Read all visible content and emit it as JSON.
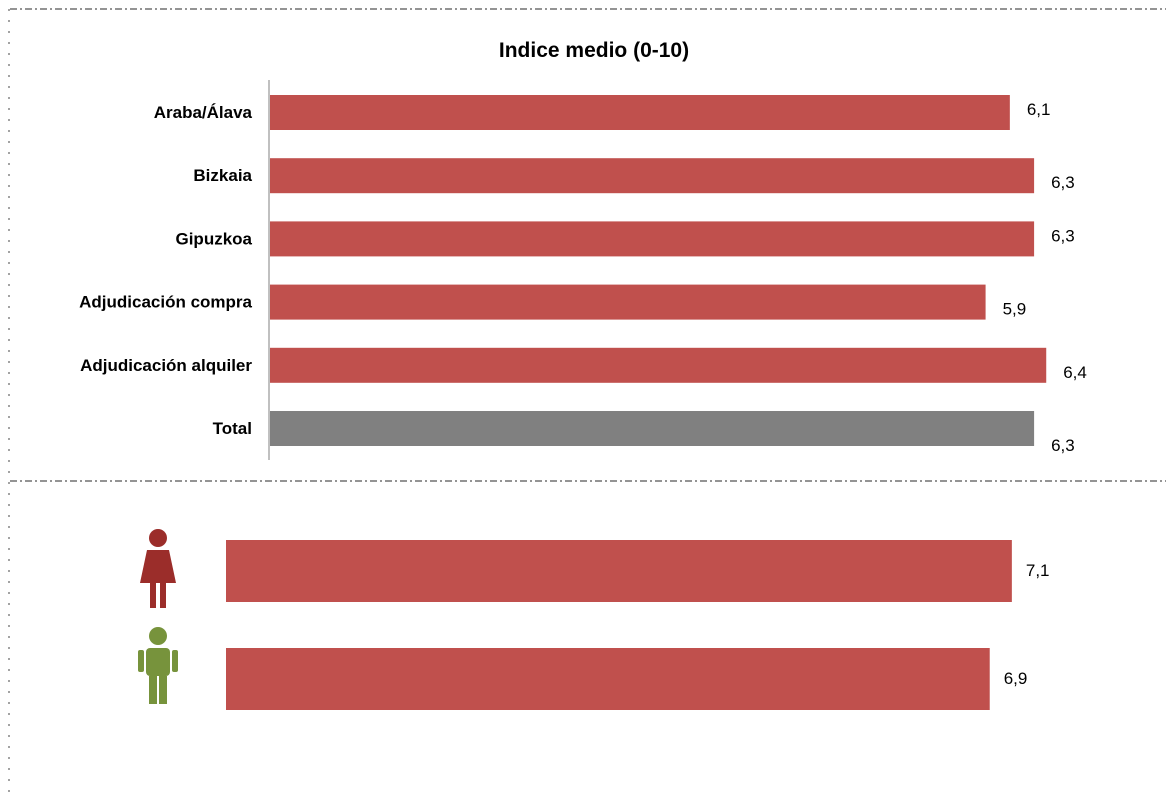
{
  "chart_data": [
    {
      "type": "bar",
      "orientation": "horizontal",
      "title": "Indice medio (0-10)",
      "categories": [
        "Araba/Álava",
        "Bizkaia",
        "Gipuzkoa",
        "Adjudicación compra",
        "Adjudicación alquiler",
        "Total"
      ],
      "values": [
        6.1,
        6.3,
        6.3,
        5.9,
        6.4,
        6.3
      ],
      "value_labels": [
        "6,1",
        "6,3",
        "6,3",
        "5,9",
        "6,4",
        "6,3"
      ],
      "xlim": [
        0,
        7
      ],
      "grid": false,
      "colors": [
        "#c0504d",
        "#c0504d",
        "#c0504d",
        "#c0504d",
        "#c0504d",
        "#808080"
      ]
    },
    {
      "type": "bar",
      "orientation": "horizontal",
      "categories": [
        "female-icon",
        "male-icon"
      ],
      "values": [
        7.1,
        6.9
      ],
      "value_labels": [
        "7,1",
        "6,9"
      ],
      "xlim": [
        0,
        7.3
      ],
      "grid": false,
      "colors": [
        "#c0504d",
        "#c0504d"
      ],
      "icon_colors": {
        "female": "#9b2d2a",
        "male": "#77933c"
      }
    }
  ]
}
